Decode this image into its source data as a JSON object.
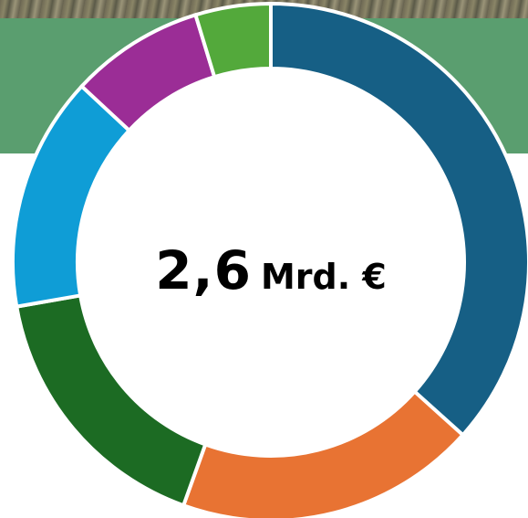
{
  "chart_data": {
    "type": "pie",
    "variant": "donut",
    "center_value": "2,6",
    "center_unit": "Mrd. €",
    "slices": [
      {
        "value": 35,
        "color": "#165f85"
      },
      {
        "value": 18,
        "color": "#e87333"
      },
      {
        "value": 16,
        "color": "#1c6b23"
      },
      {
        "value": 14,
        "color": "#0f9dd6"
      },
      {
        "value": 8,
        "color": "#9b2d96"
      },
      {
        "value": 4.5,
        "color": "#53a93b"
      }
    ]
  },
  "colors": {
    "header_band": "#5a9e6f",
    "gap": "#ffffff"
  }
}
